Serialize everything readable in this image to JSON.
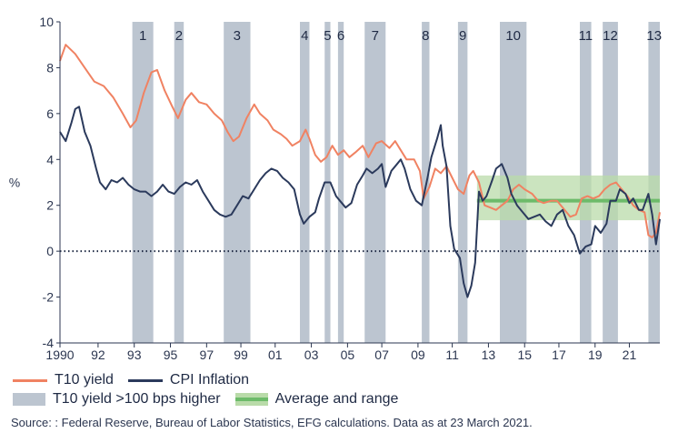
{
  "chart_data": {
    "type": "line",
    "ylabel": "%",
    "ylim": [
      -4,
      10
    ],
    "yticks": [
      -4,
      -2,
      0,
      2,
      4,
      6,
      8,
      10
    ],
    "xlim": [
      1990,
      2021.5
    ],
    "xticks": [
      {
        "year": 1990,
        "label": "1990"
      },
      {
        "year": 1992,
        "label": "92"
      },
      {
        "year": 1993.9,
        "label": "93"
      },
      {
        "year": 1995.8,
        "label": "95"
      },
      {
        "year": 1997.7,
        "label": "97"
      },
      {
        "year": 1999.5,
        "label": "99"
      },
      {
        "year": 2001.3,
        "label": "01"
      },
      {
        "year": 2003.2,
        "label": "03"
      },
      {
        "year": 2005.1,
        "label": "05"
      },
      {
        "year": 2006.9,
        "label": "07"
      },
      {
        "year": 2008.8,
        "label": "09"
      },
      {
        "year": 2010.6,
        "label": "11"
      },
      {
        "year": 2012.5,
        "label": "13"
      },
      {
        "year": 2014.4,
        "label": "15"
      },
      {
        "year": 2016.2,
        "label": "17"
      },
      {
        "year": 2018.1,
        "label": "19"
      },
      {
        "year": 2019.9,
        "label": "21"
      }
    ],
    "shaded_periods": [
      {
        "label": "1",
        "start": 1993.8,
        "end": 1994.9
      },
      {
        "label": "2",
        "start": 1996.0,
        "end": 1996.5
      },
      {
        "label": "3",
        "start": 1998.6,
        "end": 2000.0
      },
      {
        "label": "4",
        "start": 2002.6,
        "end": 2003.1
      },
      {
        "label": "5",
        "start": 2003.9,
        "end": 2004.2
      },
      {
        "label": "6",
        "start": 2004.6,
        "end": 2004.9
      },
      {
        "label": "7",
        "start": 2006.0,
        "end": 2007.1
      },
      {
        "label": "8",
        "start": 2009.0,
        "end": 2009.4
      },
      {
        "label": "9",
        "start": 2010.9,
        "end": 2011.4
      },
      {
        "label": "10",
        "start": 2013.1,
        "end": 2014.5
      },
      {
        "label": "11",
        "start": 2017.3,
        "end": 2017.9
      },
      {
        "label": "12",
        "start": 2018.5,
        "end": 2019.3
      },
      {
        "label": "13",
        "start": 2020.9,
        "end": 2021.5
      }
    ],
    "band": {
      "name": "Average and range",
      "low": 1.35,
      "high": 3.3,
      "average": 2.2,
      "start": 2011.9,
      "end": 2021.5
    },
    "zero_line": 0,
    "series": [
      {
        "name": "T10 yield",
        "color": "#f08262",
        "points": [
          [
            1990.0,
            8.3
          ],
          [
            1990.3,
            9.0
          ],
          [
            1990.8,
            8.6
          ],
          [
            1991.3,
            8.0
          ],
          [
            1991.8,
            7.4
          ],
          [
            1992.3,
            7.2
          ],
          [
            1992.8,
            6.7
          ],
          [
            1993.3,
            6.0
          ],
          [
            1993.7,
            5.4
          ],
          [
            1994.0,
            5.7
          ],
          [
            1994.4,
            6.9
          ],
          [
            1994.8,
            7.8
          ],
          [
            1995.1,
            7.9
          ],
          [
            1995.5,
            7.0
          ],
          [
            1995.9,
            6.3
          ],
          [
            1996.2,
            5.8
          ],
          [
            1996.6,
            6.6
          ],
          [
            1996.9,
            6.9
          ],
          [
            1997.3,
            6.5
          ],
          [
            1997.7,
            6.4
          ],
          [
            1998.1,
            6.0
          ],
          [
            1998.5,
            5.7
          ],
          [
            1998.8,
            5.2
          ],
          [
            1999.1,
            4.8
          ],
          [
            1999.4,
            5.0
          ],
          [
            1999.8,
            5.8
          ],
          [
            2000.2,
            6.4
          ],
          [
            2000.5,
            6.0
          ],
          [
            2000.9,
            5.7
          ],
          [
            2001.2,
            5.3
          ],
          [
            2001.6,
            5.1
          ],
          [
            2001.9,
            4.9
          ],
          [
            2002.2,
            4.6
          ],
          [
            2002.6,
            4.8
          ],
          [
            2002.9,
            5.3
          ],
          [
            2003.1,
            4.9
          ],
          [
            2003.4,
            4.2
          ],
          [
            2003.7,
            3.9
          ],
          [
            2004.0,
            4.1
          ],
          [
            2004.3,
            4.6
          ],
          [
            2004.6,
            4.2
          ],
          [
            2004.9,
            4.4
          ],
          [
            2005.2,
            4.1
          ],
          [
            2005.5,
            4.3
          ],
          [
            2005.9,
            4.6
          ],
          [
            2006.2,
            4.1
          ],
          [
            2006.6,
            4.7
          ],
          [
            2006.9,
            4.8
          ],
          [
            2007.3,
            4.5
          ],
          [
            2007.6,
            4.8
          ],
          [
            2007.9,
            4.4
          ],
          [
            2008.2,
            4.0
          ],
          [
            2008.6,
            4.0
          ],
          [
            2008.9,
            3.5
          ],
          [
            2009.1,
            2.3
          ],
          [
            2009.4,
            2.8
          ],
          [
            2009.7,
            3.6
          ],
          [
            2010.0,
            3.4
          ],
          [
            2010.3,
            3.7
          ],
          [
            2010.6,
            3.2
          ],
          [
            2010.9,
            2.7
          ],
          [
            2011.2,
            2.5
          ],
          [
            2011.5,
            3.3
          ],
          [
            2011.7,
            3.5
          ],
          [
            2012.0,
            3.0
          ],
          [
            2012.3,
            2.0
          ],
          [
            2012.6,
            1.9
          ],
          [
            2012.9,
            1.8
          ],
          [
            2013.2,
            2.0
          ],
          [
            2013.5,
            2.2
          ],
          [
            2013.8,
            2.7
          ],
          [
            2014.1,
            2.9
          ],
          [
            2014.4,
            2.7
          ],
          [
            2014.8,
            2.5
          ],
          [
            2015.1,
            2.2
          ],
          [
            2015.4,
            2.1
          ],
          [
            2015.8,
            2.2
          ],
          [
            2016.1,
            2.2
          ],
          [
            2016.5,
            1.8
          ],
          [
            2016.8,
            1.5
          ],
          [
            2017.1,
            1.6
          ],
          [
            2017.4,
            2.3
          ],
          [
            2017.7,
            2.4
          ],
          [
            2018.0,
            2.3
          ],
          [
            2018.3,
            2.4
          ],
          [
            2018.6,
            2.7
          ],
          [
            2018.9,
            2.9
          ],
          [
            2019.2,
            3.0
          ],
          [
            2019.5,
            2.7
          ],
          [
            2019.8,
            2.4
          ],
          [
            2020.1,
            2.0
          ],
          [
            2020.4,
            1.8
          ],
          [
            2020.7,
            1.7
          ],
          [
            2020.9,
            0.7
          ],
          [
            2021.1,
            0.6
          ],
          [
            2021.3,
            0.8
          ],
          [
            2021.5,
            1.7
          ]
        ]
      },
      {
        "name": "CPI Inflation",
        "color": "#2b3a5c",
        "points": [
          [
            1990.0,
            5.2
          ],
          [
            1990.3,
            4.8
          ],
          [
            1990.6,
            5.6
          ],
          [
            1990.8,
            6.2
          ],
          [
            1991.0,
            6.3
          ],
          [
            1991.3,
            5.2
          ],
          [
            1991.6,
            4.6
          ],
          [
            1991.9,
            3.6
          ],
          [
            1992.1,
            3.0
          ],
          [
            1992.4,
            2.7
          ],
          [
            1992.7,
            3.1
          ],
          [
            1993.0,
            3.0
          ],
          [
            1993.3,
            3.2
          ],
          [
            1993.6,
            2.9
          ],
          [
            1993.9,
            2.7
          ],
          [
            1994.2,
            2.6
          ],
          [
            1994.5,
            2.6
          ],
          [
            1994.8,
            2.4
          ],
          [
            1995.1,
            2.6
          ],
          [
            1995.4,
            2.9
          ],
          [
            1995.7,
            2.6
          ],
          [
            1996.0,
            2.5
          ],
          [
            1996.3,
            2.8
          ],
          [
            1996.6,
            3.0
          ],
          [
            1996.9,
            2.9
          ],
          [
            1997.2,
            3.1
          ],
          [
            1997.5,
            2.6
          ],
          [
            1997.8,
            2.2
          ],
          [
            1998.1,
            1.8
          ],
          [
            1998.4,
            1.6
          ],
          [
            1998.7,
            1.5
          ],
          [
            1999.0,
            1.6
          ],
          [
            1999.3,
            2.0
          ],
          [
            1999.6,
            2.4
          ],
          [
            1999.9,
            2.3
          ],
          [
            2000.2,
            2.7
          ],
          [
            2000.5,
            3.1
          ],
          [
            2000.8,
            3.4
          ],
          [
            2001.1,
            3.6
          ],
          [
            2001.4,
            3.5
          ],
          [
            2001.7,
            3.2
          ],
          [
            2002.0,
            3.0
          ],
          [
            2002.3,
            2.7
          ],
          [
            2002.6,
            1.6
          ],
          [
            2002.8,
            1.2
          ],
          [
            2003.1,
            1.5
          ],
          [
            2003.4,
            1.7
          ],
          [
            2003.6,
            2.3
          ],
          [
            2003.9,
            3.0
          ],
          [
            2004.2,
            3.0
          ],
          [
            2004.5,
            2.4
          ],
          [
            2004.8,
            2.1
          ],
          [
            2005.0,
            1.9
          ],
          [
            2005.3,
            2.1
          ],
          [
            2005.6,
            2.9
          ],
          [
            2005.9,
            3.3
          ],
          [
            2006.1,
            3.6
          ],
          [
            2006.4,
            3.4
          ],
          [
            2006.7,
            3.6
          ],
          [
            2006.9,
            3.8
          ],
          [
            2007.1,
            2.8
          ],
          [
            2007.4,
            3.5
          ],
          [
            2007.7,
            3.8
          ],
          [
            2007.9,
            4.0
          ],
          [
            2008.1,
            3.6
          ],
          [
            2008.4,
            2.7
          ],
          [
            2008.7,
            2.2
          ],
          [
            2009.0,
            2.0
          ],
          [
            2009.3,
            3.2
          ],
          [
            2009.5,
            4.1
          ],
          [
            2009.8,
            4.9
          ],
          [
            2010.0,
            5.5
          ],
          [
            2010.1,
            4.6
          ],
          [
            2010.3,
            3.7
          ],
          [
            2010.5,
            1.1
          ],
          [
            2010.7,
            0.1
          ],
          [
            2011.0,
            -0.3
          ],
          [
            2011.2,
            -1.4
          ],
          [
            2011.4,
            -2.0
          ],
          [
            2011.6,
            -1.5
          ],
          [
            2011.8,
            -0.5
          ],
          [
            2012.0,
            2.6
          ],
          [
            2012.2,
            2.2
          ],
          [
            2012.4,
            2.4
          ],
          [
            2012.7,
            3.1
          ],
          [
            2012.9,
            3.6
          ],
          [
            2013.2,
            3.8
          ],
          [
            2013.5,
            3.2
          ],
          [
            2013.7,
            2.5
          ],
          [
            2014.0,
            2.0
          ],
          [
            2014.3,
            1.7
          ],
          [
            2014.6,
            1.4
          ],
          [
            2014.9,
            1.5
          ],
          [
            2015.2,
            1.6
          ],
          [
            2015.5,
            1.3
          ],
          [
            2015.8,
            1.1
          ],
          [
            2016.1,
            1.6
          ],
          [
            2016.4,
            1.8
          ],
          [
            2016.7,
            1.1
          ],
          [
            2017.0,
            0.7
          ],
          [
            2017.3,
            -0.1
          ],
          [
            2017.6,
            0.2
          ],
          [
            2017.9,
            0.3
          ],
          [
            2018.1,
            1.1
          ],
          [
            2018.4,
            0.8
          ],
          [
            2018.7,
            1.2
          ],
          [
            2018.9,
            2.2
          ],
          [
            2019.2,
            2.2
          ],
          [
            2019.4,
            2.7
          ],
          [
            2019.7,
            2.5
          ],
          [
            2019.9,
            2.1
          ],
          [
            2020.1,
            2.3
          ],
          [
            2020.4,
            1.8
          ],
          [
            2020.6,
            1.8
          ],
          [
            2020.9,
            2.5
          ],
          [
            2021.1,
            1.6
          ],
          [
            2021.3,
            0.3
          ],
          [
            2021.5,
            1.4
          ],
          [
            2021.8,
            1.3
          ],
          [
            2022.1,
            1.5
          ]
        ]
      }
    ]
  },
  "legend": {
    "t10_label": "T10 yield",
    "cpi_label": "CPI Inflation",
    "shade_label": "T10 yield >100 bps higher",
    "band_label": "Average and range",
    "t10_color": "#f08262",
    "cpi_color": "#2b3a5c",
    "shade_color": "#bcc5d0",
    "band_color": "#b9dba9",
    "avg_color": "#6dbb6a"
  },
  "source": "Source: : Federal Reserve, Bureau of Labor Statistics, EFG calculations. Data as at 23 March 2021."
}
